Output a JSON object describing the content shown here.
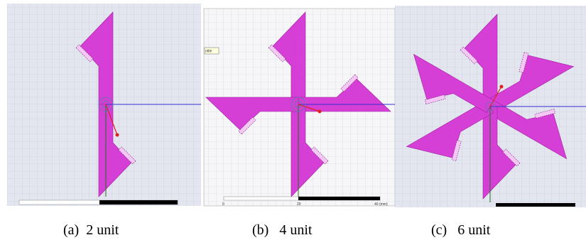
{
  "panels": [
    {
      "caption": "(a)  2 unit"
    },
    {
      "caption": "(b)   4 unit",
      "tooltip": "ottle",
      "scale_labels": [
        "0",
        "20",
        "40 (mm)"
      ]
    },
    {
      "caption": "(c)   6 unit"
    }
  ]
}
